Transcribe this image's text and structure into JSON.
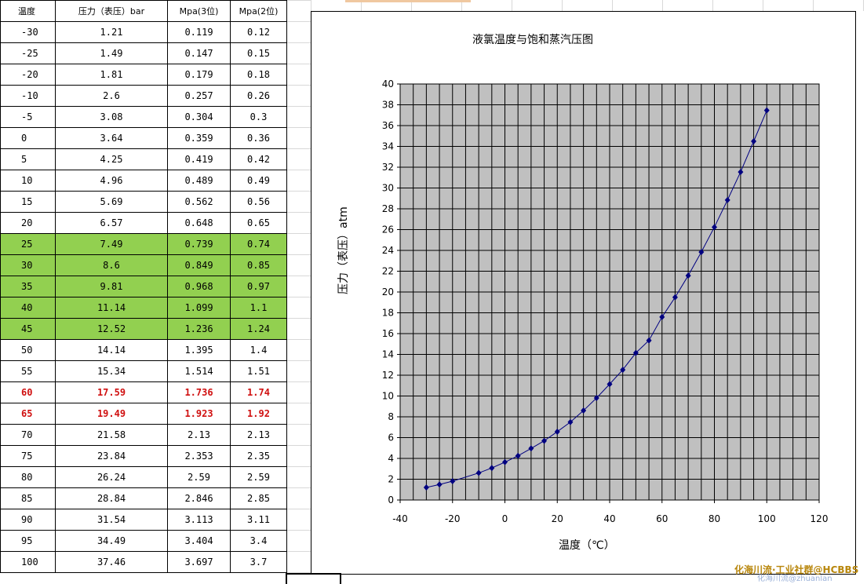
{
  "sheet": {
    "headers": [
      "温度",
      "压力（表压）bar",
      "Mpa(3位)",
      "Mpa(2位)"
    ],
    "rows": [
      {
        "t": "-30",
        "bar": "1.21",
        "m3": "0.119",
        "m2": "0.12",
        "style": ""
      },
      {
        "t": "-25",
        "bar": "1.49",
        "m3": "0.147",
        "m2": "0.15",
        "style": ""
      },
      {
        "t": "-20",
        "bar": "1.81",
        "m3": "0.179",
        "m2": "0.18",
        "style": ""
      },
      {
        "t": "-10",
        "bar": "2.6",
        "m3": "0.257",
        "m2": "0.26",
        "style": ""
      },
      {
        "t": "-5",
        "bar": "3.08",
        "m3": "0.304",
        "m2": "0.3",
        "style": ""
      },
      {
        "t": "0",
        "bar": "3.64",
        "m3": "0.359",
        "m2": "0.36",
        "style": ""
      },
      {
        "t": "5",
        "bar": "4.25",
        "m3": "0.419",
        "m2": "0.42",
        "style": ""
      },
      {
        "t": "10",
        "bar": "4.96",
        "m3": "0.489",
        "m2": "0.49",
        "style": ""
      },
      {
        "t": "15",
        "bar": "5.69",
        "m3": "0.562",
        "m2": "0.56",
        "style": ""
      },
      {
        "t": "20",
        "bar": "6.57",
        "m3": "0.648",
        "m2": "0.65",
        "style": ""
      },
      {
        "t": "25",
        "bar": "7.49",
        "m3": "0.739",
        "m2": "0.74",
        "style": "hl"
      },
      {
        "t": "30",
        "bar": "8.6",
        "m3": "0.849",
        "m2": "0.85",
        "style": "hl"
      },
      {
        "t": "35",
        "bar": "9.81",
        "m3": "0.968",
        "m2": "0.97",
        "style": "hl"
      },
      {
        "t": "40",
        "bar": "11.14",
        "m3": "1.099",
        "m2": "1.1",
        "style": "hl"
      },
      {
        "t": "45",
        "bar": "12.52",
        "m3": "1.236",
        "m2": "1.24",
        "style": "hl"
      },
      {
        "t": "50",
        "bar": "14.14",
        "m3": "1.395",
        "m2": "1.4",
        "style": ""
      },
      {
        "t": "55",
        "bar": "15.34",
        "m3": "1.514",
        "m2": "1.51",
        "style": ""
      },
      {
        "t": "60",
        "bar": "17.59",
        "m3": "1.736",
        "m2": "1.74",
        "style": "red"
      },
      {
        "t": "65",
        "bar": "19.49",
        "m3": "1.923",
        "m2": "1.92",
        "style": "red"
      },
      {
        "t": "70",
        "bar": "21.58",
        "m3": "2.13",
        "m2": "2.13",
        "style": ""
      },
      {
        "t": "75",
        "bar": "23.84",
        "m3": "2.353",
        "m2": "2.35",
        "style": ""
      },
      {
        "t": "80",
        "bar": "26.24",
        "m3": "2.59",
        "m2": "2.59",
        "style": ""
      },
      {
        "t": "85",
        "bar": "28.84",
        "m3": "2.846",
        "m2": "2.85",
        "style": ""
      },
      {
        "t": "90",
        "bar": "31.54",
        "m3": "3.113",
        "m2": "3.11",
        "style": ""
      },
      {
        "t": "95",
        "bar": "34.49",
        "m3": "3.404",
        "m2": "3.4",
        "style": ""
      },
      {
        "t": "100",
        "bar": "37.46",
        "m3": "3.697",
        "m2": "3.7",
        "style": ""
      }
    ]
  },
  "colors": {
    "highlight_fill": "#92d050",
    "red_text": "#d01010",
    "plot_bg": "#c0c0c0",
    "series_line": "#000080"
  },
  "chart_data": {
    "type": "scatter",
    "title": "液氯温度与饱和蒸汽压图",
    "xlabel": "温度（℃）",
    "ylabel": "压力（表压）atm",
    "xlim": [
      -40,
      120
    ],
    "ylim": [
      0,
      40
    ],
    "xticks": [
      -40,
      -20,
      0,
      20,
      40,
      60,
      80,
      100,
      120
    ],
    "yticks": [
      0,
      2,
      4,
      6,
      8,
      10,
      12,
      14,
      16,
      18,
      20,
      22,
      24,
      26,
      28,
      30,
      32,
      34,
      36,
      38,
      40
    ],
    "grid": true,
    "series": [
      {
        "x": [
          -30,
          -25,
          -20,
          -10,
          -5,
          0,
          5,
          10,
          15,
          20,
          25,
          30,
          35,
          40,
          45,
          50,
          55,
          60,
          65,
          70,
          75,
          80,
          85,
          90,
          95,
          100
        ],
        "y": [
          1.21,
          1.49,
          1.81,
          2.6,
          3.08,
          3.64,
          4.25,
          4.96,
          5.69,
          6.57,
          7.49,
          8.6,
          9.81,
          11.14,
          12.52,
          14.14,
          15.34,
          17.59,
          19.49,
          21.58,
          23.84,
          26.24,
          28.84,
          31.54,
          34.49,
          37.46
        ]
      }
    ]
  },
  "watermark": "化海川流·工业社群@HCBBS",
  "watermark_sub": "化海川流@zhuanlan"
}
